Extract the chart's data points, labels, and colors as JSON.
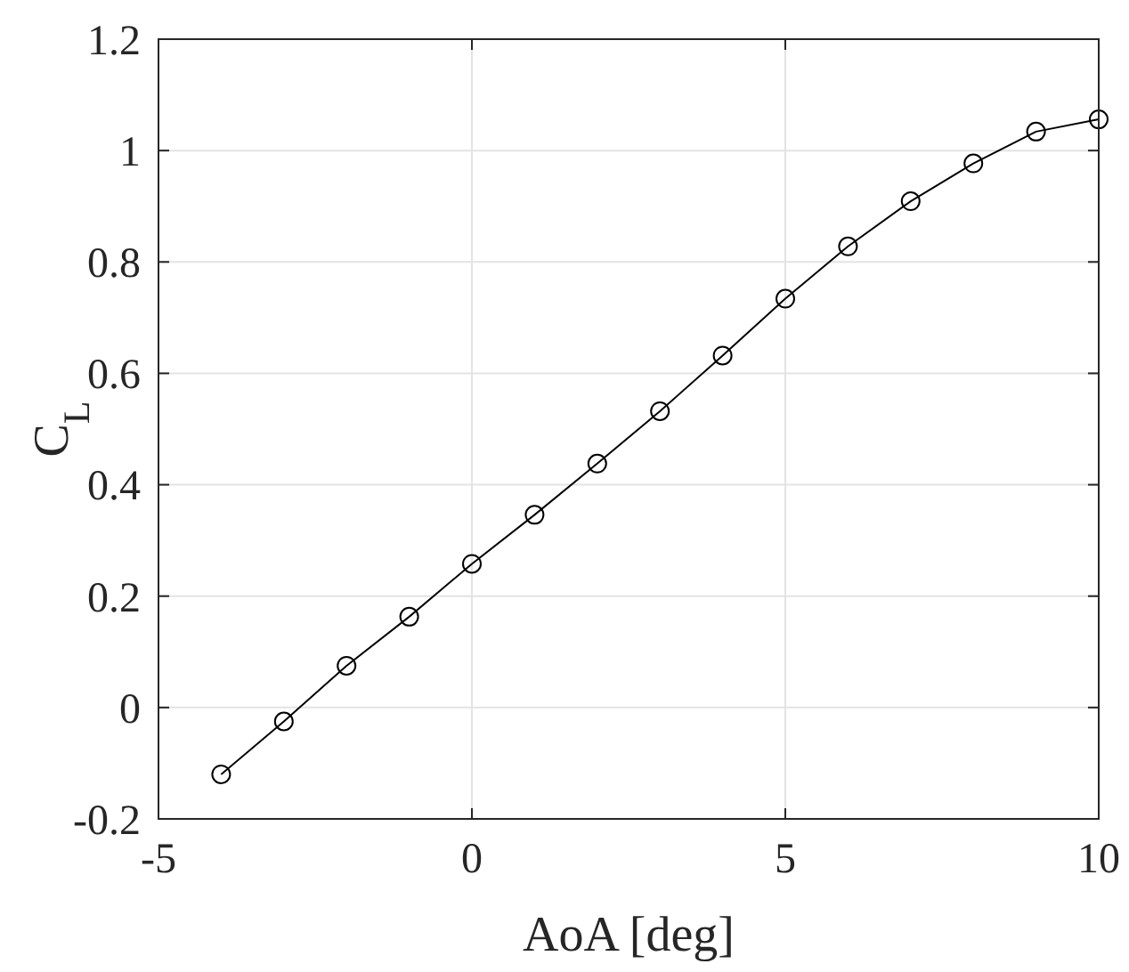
{
  "chart_data": {
    "type": "line",
    "xlabel": "AoA [deg]",
    "ylabel": "C$_{L}$",
    "x": [
      -4,
      -3,
      -2,
      -1,
      0,
      1,
      2,
      3,
      4,
      5,
      6,
      7,
      8,
      9,
      10
    ],
    "series": [
      {
        "color": "#000000",
        "values": [
          -0.12,
          -0.025,
          0.075,
          0.163,
          0.258,
          0.346,
          0.438,
          0.532,
          0.632,
          0.734,
          0.828,
          0.909,
          0.977,
          1.034,
          1.056
        ]
      }
    ],
    "xlim": [
      -5,
      10
    ],
    "xticks": [
      -5,
      0,
      5,
      10
    ],
    "ylim": [
      -0.2,
      1.2
    ],
    "yticks": [
      {
        "value": -0.2,
        "label": "-0.2"
      },
      0,
      {
        "value": 0.2,
        "label": "0.2"
      },
      {
        "value": 0.4,
        "label": "0.4"
      },
      {
        "value": 0.6,
        "label": "0.6"
      },
      {
        "value": 0.8,
        "label": "0.8"
      },
      1,
      {
        "value": 1.2,
        "label": "1.2"
      }
    ],
    "grid": true,
    "marker": "circle",
    "line_style": "solid"
  }
}
